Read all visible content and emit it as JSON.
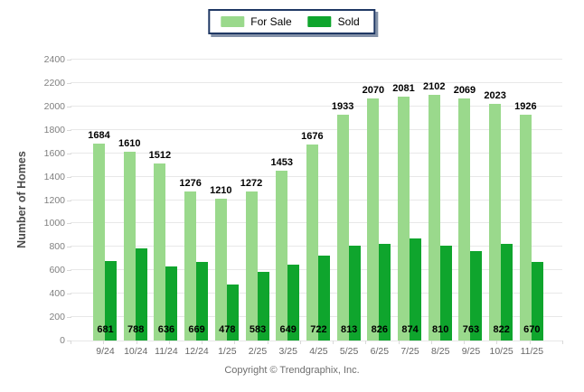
{
  "legend": {
    "items": [
      {
        "label": "For Sale",
        "color": "#9AD98C"
      },
      {
        "label": "Sold",
        "color": "#0FA52D"
      }
    ]
  },
  "chart_data": {
    "type": "bar",
    "title": "",
    "categories": [
      "9/24",
      "10/24",
      "11/24",
      "12/24",
      "1/25",
      "2/25",
      "3/25",
      "4/25",
      "5/25",
      "6/25",
      "7/25",
      "8/25",
      "9/25",
      "10/25",
      "11/25"
    ],
    "series": [
      {
        "name": "For Sale",
        "color": "#9AD98C",
        "values": [
          1684,
          1610,
          1512,
          1276,
          1210,
          1272,
          1453,
          1676,
          1933,
          2070,
          2081,
          2102,
          2069,
          2023,
          1926
        ],
        "value_label_position": "above bar"
      },
      {
        "name": "Sold",
        "color": "#0FA52D",
        "values": [
          681,
          788,
          636,
          669,
          478,
          583,
          649,
          722,
          813,
          826,
          874,
          810,
          763,
          822,
          670
        ],
        "value_label_position": "bottom of bar"
      }
    ],
    "xlabel": "",
    "ylabel": "Number of Homes",
    "ylim": [
      0,
      2400
    ],
    "ytick_step": 200,
    "yticks": [
      0,
      200,
      400,
      600,
      800,
      1000,
      1200,
      1400,
      1600,
      1800,
      2000,
      2200,
      2400
    ],
    "grid": true,
    "legend_position": "top-center"
  },
  "footer": {
    "copyright": "Copyright © Trendgraphix, Inc."
  },
  "colors": {
    "for_sale": "#9AD98C",
    "sold": "#0FA52D",
    "legend_border": "#1F3864",
    "gridline": "#E8E8E8",
    "tick_stub": "#D9D9D9",
    "y_tick_label": "#7F7F7F",
    "x_tick_label": "#666666",
    "value_label": "#000000",
    "axis_title": "#4A4A4A",
    "copyright_text": "#6E6E6E"
  }
}
